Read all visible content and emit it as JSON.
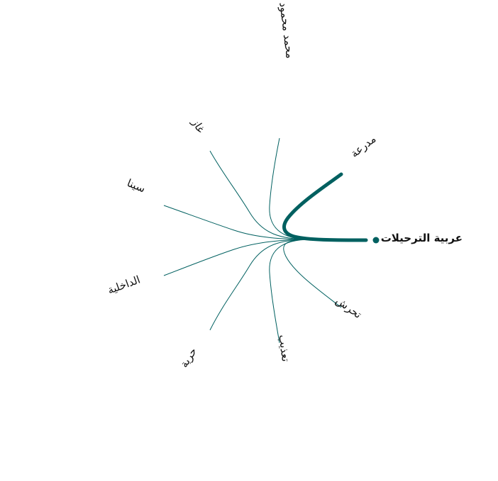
{
  "colors": {
    "edge": "#006060",
    "label": "#111111"
  },
  "diagram": {
    "type": "radial-edge-bundle",
    "focus_node": "عربية الترحيلات",
    "highlighted_target": "مدرعة",
    "nodes": [
      {
        "id": "focus",
        "label": "عربية الترحيلات"
      },
      {
        "id": "mdr",
        "label": "مدرعة"
      },
      {
        "id": "mm",
        "label": "محمد محمود"
      },
      {
        "id": "ghaz",
        "label": "غاز"
      },
      {
        "id": "sina",
        "label": "سينا"
      },
      {
        "id": "dakh",
        "label": "الداخلية"
      },
      {
        "id": "horr",
        "label": "حرية"
      },
      {
        "id": "taadh",
        "label": "تعذيب"
      },
      {
        "id": "tahar",
        "label": "تحرش"
      }
    ],
    "edges": [
      {
        "from": "focus",
        "to": "mdr",
        "highlighted": true
      },
      {
        "from": "focus",
        "to": "mm",
        "highlighted": false
      },
      {
        "from": "focus",
        "to": "ghaz",
        "highlighted": false
      },
      {
        "from": "focus",
        "to": "sina",
        "highlighted": false
      },
      {
        "from": "focus",
        "to": "dakh",
        "highlighted": false
      },
      {
        "from": "focus",
        "to": "horr",
        "highlighted": false
      },
      {
        "from": "focus",
        "to": "taadh",
        "highlighted": false
      },
      {
        "from": "focus",
        "to": "tahar",
        "highlighted": false
      }
    ]
  }
}
